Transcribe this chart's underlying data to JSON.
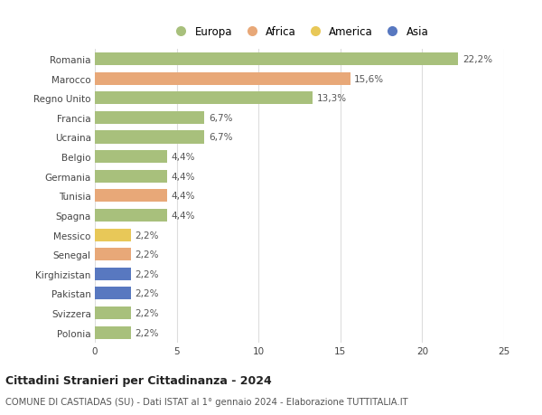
{
  "countries": [
    "Romania",
    "Marocco",
    "Regno Unito",
    "Francia",
    "Ucraina",
    "Belgio",
    "Germania",
    "Tunisia",
    "Spagna",
    "Messico",
    "Senegal",
    "Kirghizistan",
    "Pakistan",
    "Svizzera",
    "Polonia"
  ],
  "values": [
    22.2,
    15.6,
    13.3,
    6.7,
    6.7,
    4.4,
    4.4,
    4.4,
    4.4,
    2.2,
    2.2,
    2.2,
    2.2,
    2.2,
    2.2
  ],
  "percentages": [
    "22,2%",
    "15,6%",
    "13,3%",
    "6,7%",
    "6,7%",
    "4,4%",
    "4,4%",
    "4,4%",
    "4,4%",
    "2,2%",
    "2,2%",
    "2,2%",
    "2,2%",
    "2,2%",
    "2,2%"
  ],
  "continents": [
    "Europa",
    "Africa",
    "Europa",
    "Europa",
    "Europa",
    "Europa",
    "Europa",
    "Africa",
    "Europa",
    "America",
    "Africa",
    "Asia",
    "Asia",
    "Europa",
    "Europa"
  ],
  "colors": {
    "Europa": "#a8c07c",
    "Africa": "#e8a878",
    "America": "#e8c858",
    "Asia": "#5878c0"
  },
  "legend_labels": [
    "Europa",
    "Africa",
    "America",
    "Asia"
  ],
  "legend_colors": [
    "#a8c07c",
    "#e8a878",
    "#e8c858",
    "#5878c0"
  ],
  "title": "Cittadini Stranieri per Cittadinanza - 2024",
  "subtitle": "COMUNE DI CASTIADAS (SU) - Dati ISTAT al 1° gennaio 2024 - Elaborazione TUTTITALIA.IT",
  "xlim": [
    0,
    25
  ],
  "xticks": [
    0,
    5,
    10,
    15,
    20,
    25
  ],
  "background_color": "#ffffff",
  "grid_color": "#dddddd",
  "bar_height": 0.65,
  "label_fontsize": 7.5,
  "tick_fontsize": 7.5
}
